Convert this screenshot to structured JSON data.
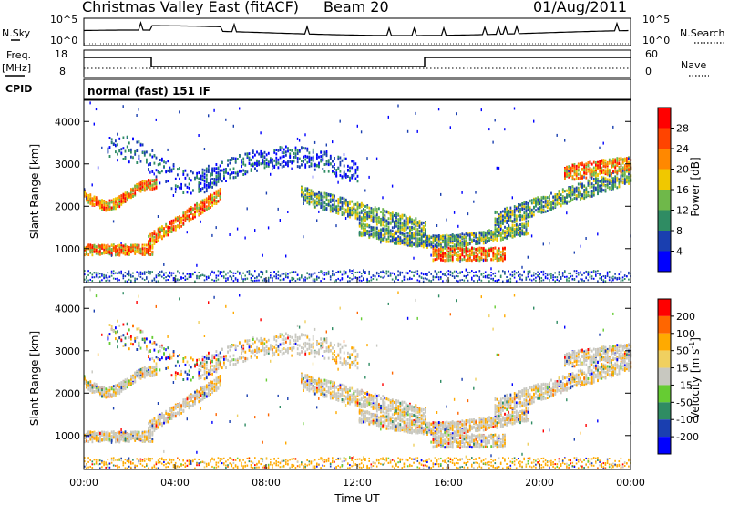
{
  "header": {
    "title": "Christmas Valley East (fitACF)",
    "beam": "Beam 20",
    "date": "01/Aug/2011"
  },
  "left_labels": {
    "nsky": "N.Sky",
    "freq": "Freq.",
    "freq_unit": "[MHz]",
    "cpid": "CPID"
  },
  "right_labels": {
    "nsearch": "N.Search",
    "nave": "Nave"
  },
  "cpid_text": "normal (fast) 151 IF",
  "noise_panel": {
    "yticks_left": [
      "10^5",
      "10^0"
    ],
    "yticks_right": [
      "10^5",
      "10^0"
    ]
  },
  "freq_panel": {
    "yticks_left": [
      "18",
      "8"
    ],
    "yticks_right": [
      "60",
      "0"
    ]
  },
  "colors": {
    "power_scale": [
      "#0000ff",
      "#1a3fb0",
      "#2f8c63",
      "#6fb84a",
      "#f0c800",
      "#ff8800",
      "#ff4400",
      "#ff0000"
    ],
    "velocity_scale": [
      "#ff0000",
      "#ff6600",
      "#ffaa00",
      "#f0d060",
      "#c8c8c0",
      "#66cc33",
      "#2f8c63",
      "#1a3fb0",
      "#0000ff"
    ],
    "ground_scatter": "#c8c8c0"
  },
  "chart_data": [
    {
      "type": "heatmap",
      "panel": "power",
      "ylabel": "Slant Range [km]",
      "yticks": [
        "1000",
        "2000",
        "3000",
        "4000"
      ],
      "ylim": [
        200,
        4500
      ],
      "xlim": [
        0,
        24
      ],
      "colorbar": {
        "label": "Power [dB]",
        "ticks": [
          "4",
          "8",
          "12",
          "16",
          "20",
          "24",
          "28"
        ]
      }
    },
    {
      "type": "heatmap",
      "panel": "velocity",
      "ylabel": "Slant Range [km]",
      "yticks": [
        "1000",
        "2000",
        "3000",
        "4000"
      ],
      "ylim": [
        200,
        4500
      ],
      "xlim": [
        0,
        24
      ],
      "xticks": [
        "00:00",
        "04:00",
        "08:00",
        "12:00",
        "16:00",
        "20:00",
        "00:00"
      ],
      "xlabel": "Time UT",
      "colorbar": {
        "label": "Velocity [m s",
        "label_sup": "-1",
        "label_end": "]",
        "ticks": [
          "200",
          "100",
          "50",
          "15",
          "-15",
          "-50",
          "-100",
          "-200"
        ]
      }
    }
  ]
}
